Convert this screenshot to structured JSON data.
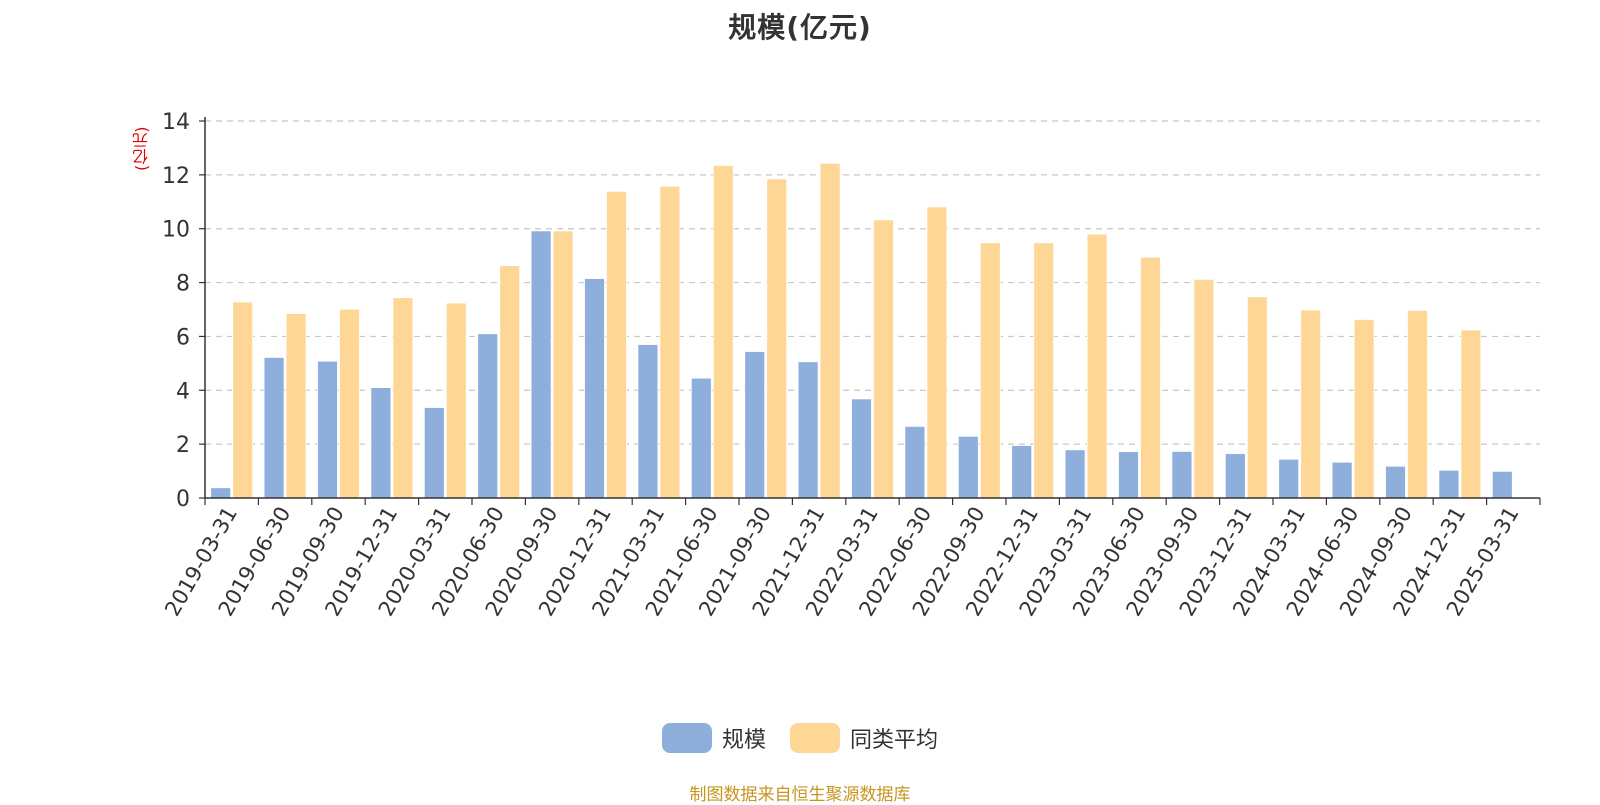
{
  "title": "规模(亿元)",
  "source_note": "制图数据来自恒生聚源数据库",
  "colors": {
    "series_size": "#8eaedb",
    "series_avg": "#fed797",
    "grid": "#c8c8c8",
    "axis": "#333333",
    "unit_text": "#e00000",
    "source_text": "#c8951f"
  },
  "chart_data": {
    "type": "bar",
    "title": "规模(亿元)",
    "ylabel": "(亿元)",
    "xlabel": "",
    "ylim": [
      0,
      14
    ],
    "yticks": [
      0,
      2,
      4,
      6,
      8,
      10,
      12,
      14
    ],
    "grid": true,
    "legend_position": "bottom",
    "categories": [
      "2019-03-31",
      "2019-06-30",
      "2019-09-30",
      "2019-12-31",
      "2020-03-31",
      "2020-06-30",
      "2020-09-30",
      "2020-12-31",
      "2021-03-31",
      "2021-06-30",
      "2021-09-30",
      "2021-12-31",
      "2022-03-31",
      "2022-06-30",
      "2022-09-30",
      "2022-12-31",
      "2023-03-31",
      "2023-06-30",
      "2023-09-30",
      "2023-12-31",
      "2024-03-31",
      "2024-06-30",
      "2024-09-30",
      "2024-12-31",
      "2025-03-31"
    ],
    "series": [
      {
        "name": "规模",
        "color": "#8eaedb",
        "values": [
          0.38,
          5.22,
          5.08,
          4.1,
          3.36,
          6.1,
          9.92,
          8.15,
          5.7,
          4.45,
          5.44,
          5.06,
          3.68,
          2.66,
          2.29,
          1.95,
          1.79,
          1.72,
          1.73,
          1.65,
          1.44,
          1.33,
          1.18,
          1.03,
          0.99
        ]
      },
      {
        "name": "同类平均",
        "color": "#fed797",
        "values": [
          7.28,
          6.85,
          7.01,
          7.44,
          7.24,
          8.63,
          9.92,
          11.39,
          11.58,
          12.35,
          11.85,
          12.43,
          10.33,
          10.81,
          9.48,
          9.48,
          9.8,
          8.94,
          8.12,
          7.47,
          6.98,
          6.63,
          6.97,
          6.24,
          null
        ]
      }
    ]
  }
}
